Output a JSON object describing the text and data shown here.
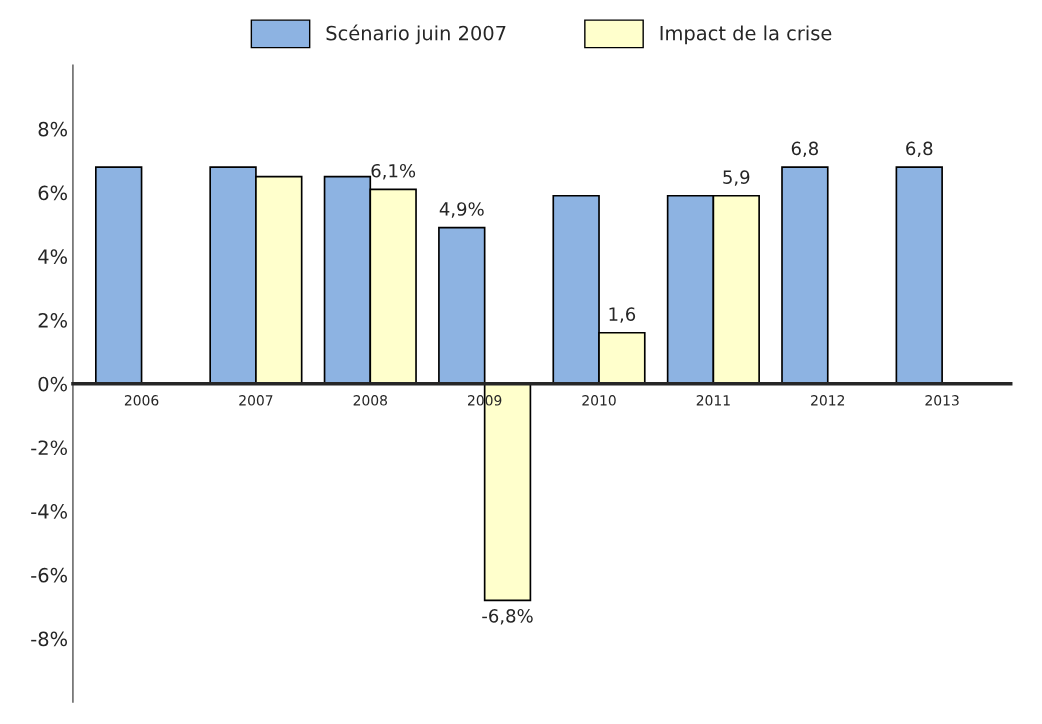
{
  "chart_data": {
    "type": "bar",
    "categories": [
      "2006",
      "2007",
      "2008",
      "2009",
      "2010",
      "2011",
      "2012",
      "2013"
    ],
    "series": [
      {
        "name": "Scénario juin 2007",
        "color": "#8db3e2",
        "values": [
          6.8,
          6.8,
          6.5,
          4.9,
          5.9,
          5.9,
          6.8,
          6.8
        ],
        "value_labels": [
          null,
          null,
          null,
          "4,9%",
          null,
          null,
          "6,8",
          "6,8"
        ]
      },
      {
        "name": "Impact de la crise",
        "color": "#ffffcc",
        "values": [
          null,
          6.5,
          6.1,
          -6.8,
          1.6,
          5.9,
          null,
          null
        ],
        "value_labels": [
          null,
          null,
          "6,1%",
          "-6,8%",
          "1,6",
          "5,9",
          null,
          null
        ]
      }
    ],
    "ylim": [
      -10,
      10
    ],
    "yticks": [
      {
        "value": 8,
        "label": "8%"
      },
      {
        "value": 6,
        "label": "6%"
      },
      {
        "value": 4,
        "label": "4%"
      },
      {
        "value": 2,
        "label": "2%"
      },
      {
        "value": 0,
        "label": "0%"
      },
      {
        "value": -2,
        "label": "-2%"
      },
      {
        "value": -4,
        "label": "-4%"
      },
      {
        "value": -6,
        "label": "-6%"
      },
      {
        "value": -8,
        "label": "-8%"
      }
    ],
    "legend": "top",
    "grid": false
  }
}
